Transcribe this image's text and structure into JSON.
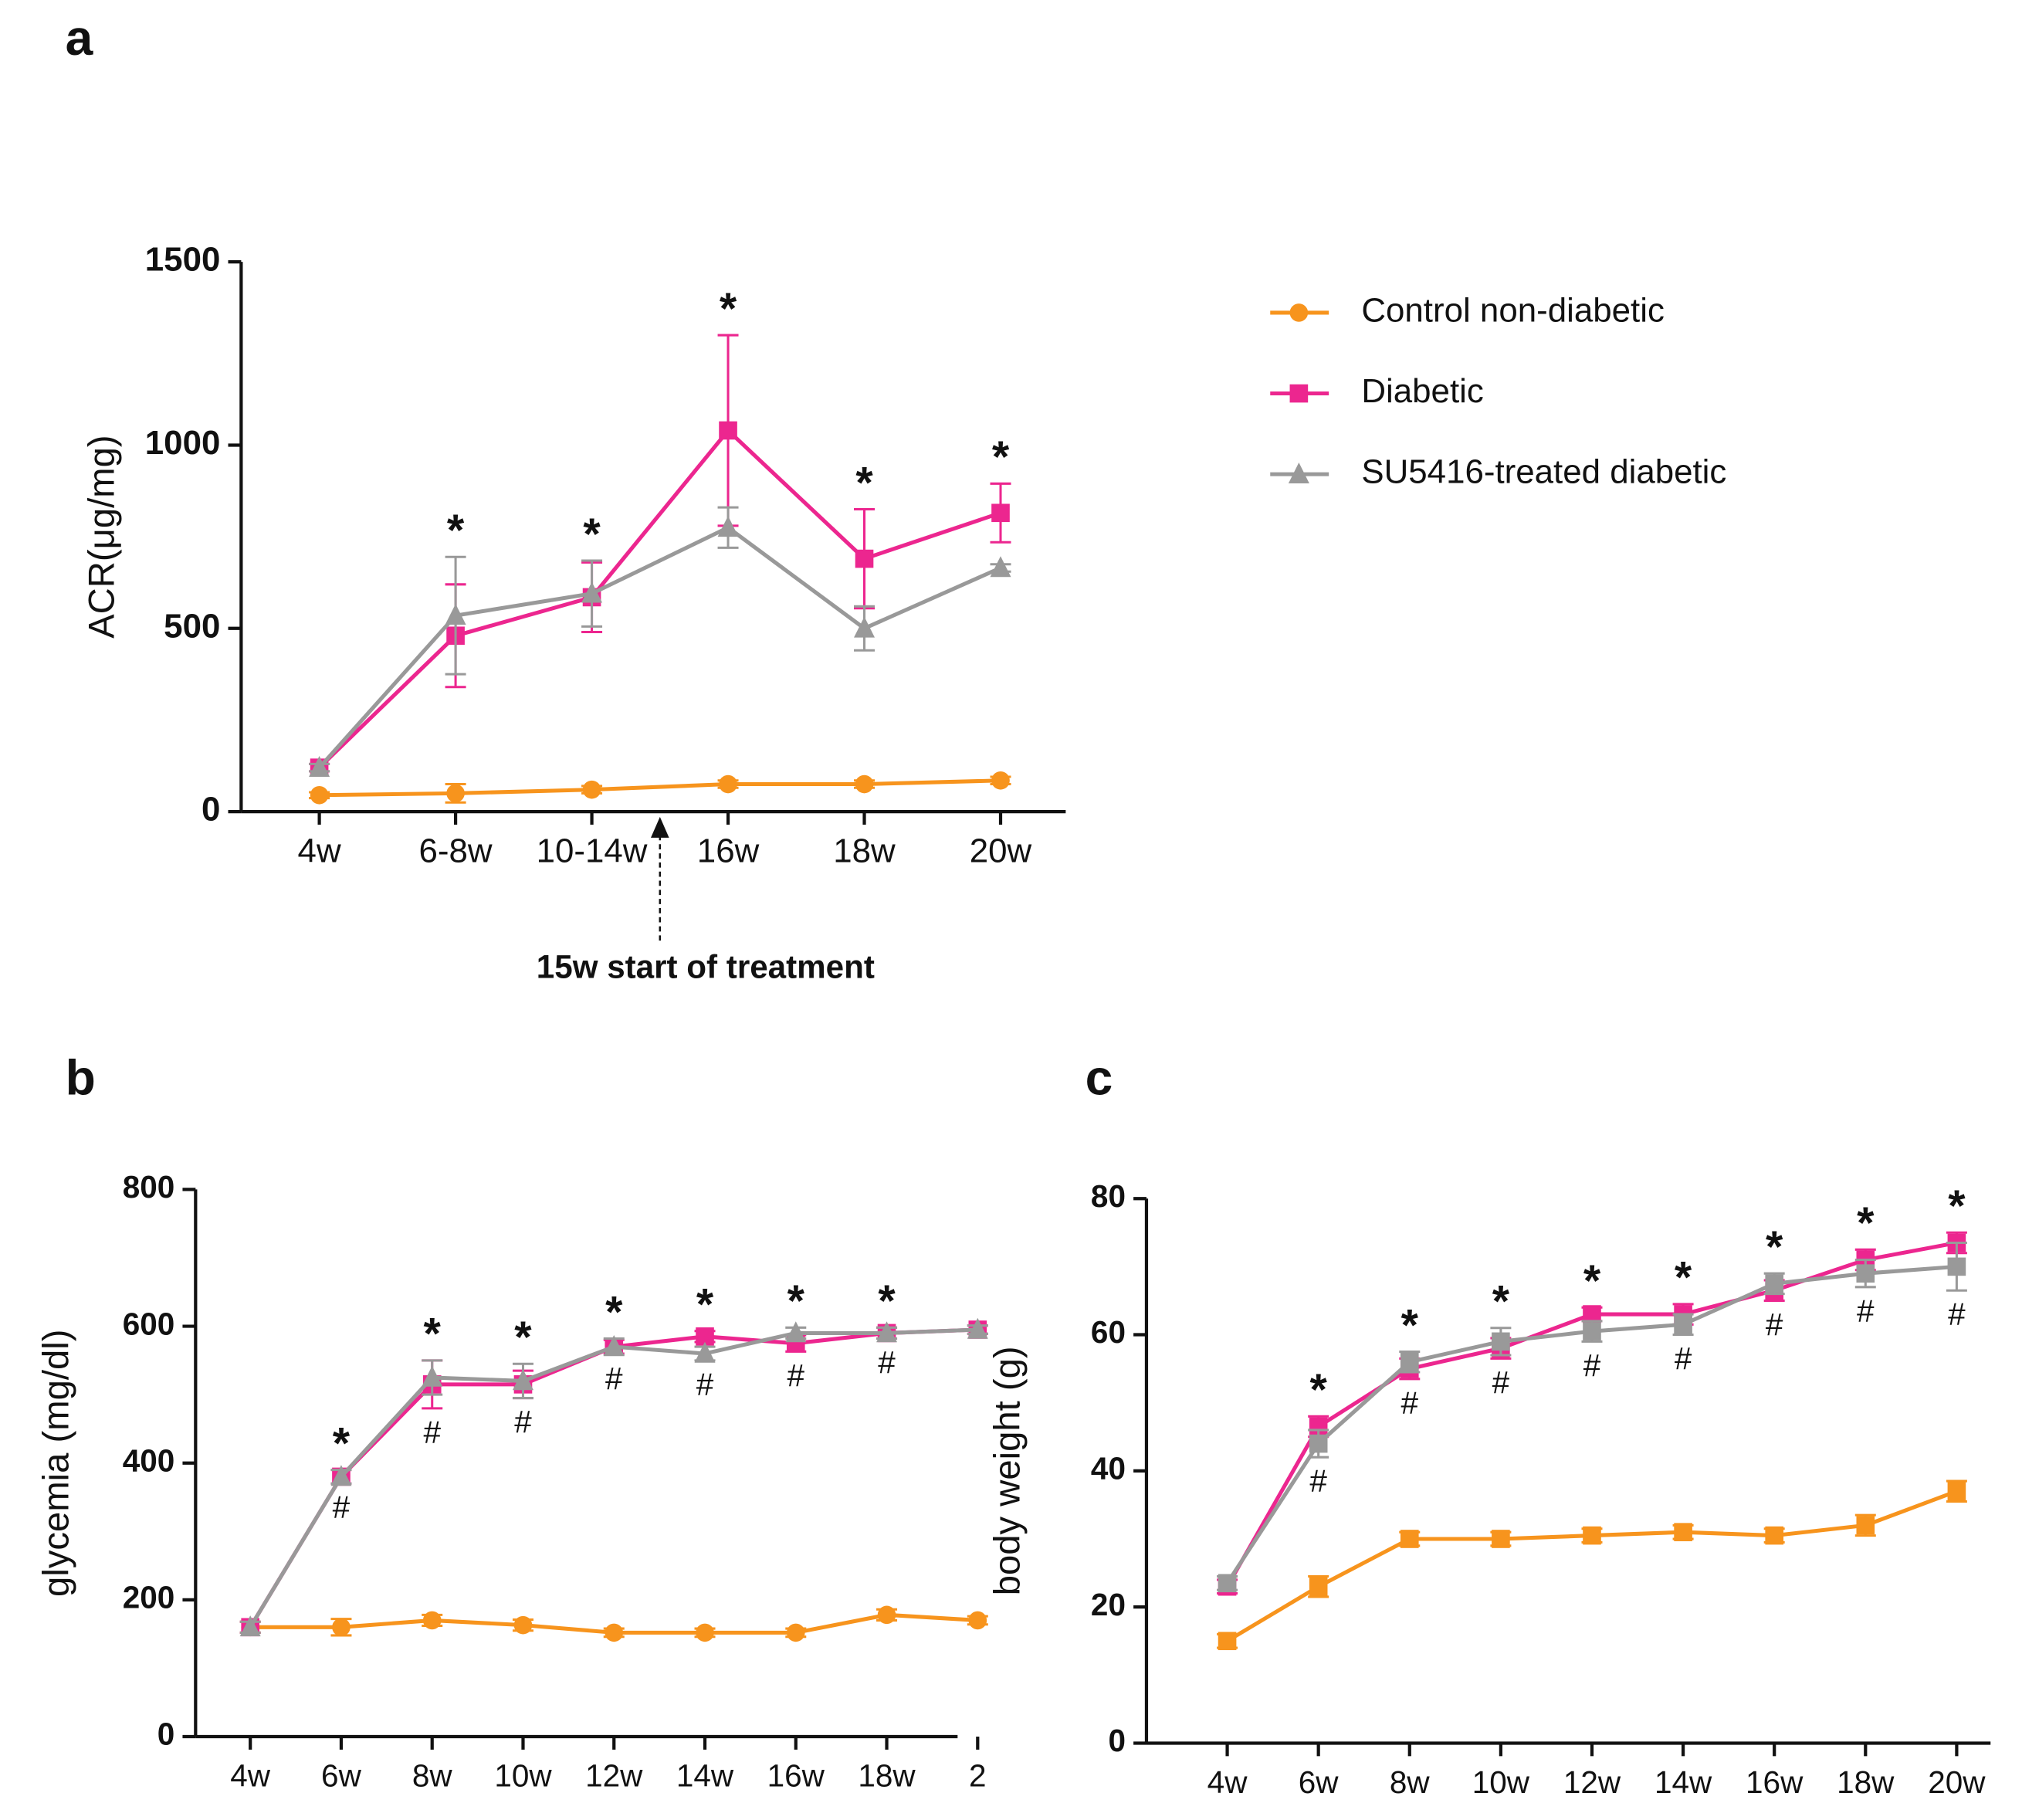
{
  "chart_data": [
    {
      "type": "line",
      "panel": "a",
      "ylabel": "ACR(μg/mg)",
      "ylim": [
        0,
        1500
      ],
      "yticks": [
        0,
        500,
        1000,
        1500
      ],
      "categories": [
        "4w",
        "6-8w",
        "10-14w",
        "16w",
        "18w",
        "20w"
      ],
      "series": [
        {
          "name": "Control non-diabetic",
          "color": "#f7941d",
          "marker": "circle",
          "values": [
            45,
            50,
            60,
            75,
            75,
            85
          ],
          "errors": [
            8,
            25,
            10,
            10,
            10,
            10
          ]
        },
        {
          "name": "Diabetic",
          "color": "#ec268f",
          "marker": "square",
          "values": [
            120,
            480,
            585,
            1040,
            690,
            815
          ],
          "errors": [
            10,
            140,
            95,
            260,
            135,
            80
          ]
        },
        {
          "name": "SU5416-treated diabetic",
          "color": "#999999",
          "marker": "triangle",
          "values": [
            120,
            535,
            595,
            775,
            500,
            665
          ],
          "errors": [
            10,
            160,
            90,
            55,
            60,
            10
          ]
        }
      ],
      "annotations": [
        {
          "text": "*",
          "category": "6-8w"
        },
        {
          "text": "*",
          "category": "10-14w"
        },
        {
          "text": "*",
          "category": "16w"
        },
        {
          "text": "*",
          "category": "18w"
        },
        {
          "text": "*",
          "category": "20w"
        }
      ],
      "note": "15w start of treatment",
      "legend": "right"
    },
    {
      "type": "line",
      "panel": "b",
      "ylabel": "glycemia (mg/dl)",
      "ylim": [
        0,
        800
      ],
      "yticks": [
        0,
        200,
        400,
        600,
        800
      ],
      "categories": [
        "4w",
        "6w",
        "8w",
        "10w",
        "12w",
        "14w",
        "16w",
        "18w",
        "2"
      ],
      "series": [
        {
          "name": "Control non-diabetic",
          "color": "#f7941d",
          "marker": "circle",
          "values": [
            160,
            160,
            170,
            163,
            152,
            152,
            152,
            178,
            170
          ],
          "errors": [
            8,
            12,
            8,
            8,
            6,
            6,
            6,
            8,
            6
          ]
        },
        {
          "name": "Diabetic",
          "color": "#ec268f",
          "marker": "square",
          "values": [
            160,
            380,
            515,
            515,
            570,
            585,
            575,
            590,
            595
          ],
          "errors": [
            8,
            10,
            35,
            20,
            10,
            8,
            12,
            8,
            6
          ]
        },
        {
          "name": "SU5416-treated diabetic",
          "color": "#999999",
          "marker": "triangle",
          "values": [
            160,
            380,
            525,
            520,
            570,
            560,
            590,
            590,
            595
          ],
          "errors": [
            8,
            10,
            25,
            25,
            12,
            10,
            8,
            8,
            6
          ]
        }
      ],
      "annotations": [
        {
          "text": "*",
          "category": "6w"
        },
        {
          "text": "*",
          "category": "8w"
        },
        {
          "text": "*",
          "category": "10w"
        },
        {
          "text": "*",
          "category": "12w"
        },
        {
          "text": "*",
          "category": "14w"
        },
        {
          "text": "*",
          "category": "16w"
        },
        {
          "text": "*",
          "category": "18w"
        },
        {
          "text": "#",
          "category": "6w"
        },
        {
          "text": "#",
          "category": "8w"
        },
        {
          "text": "#",
          "category": "10w"
        },
        {
          "text": "#",
          "category": "12w"
        },
        {
          "text": "#",
          "category": "14w"
        },
        {
          "text": "#",
          "category": "16w"
        },
        {
          "text": "#",
          "category": "18w"
        }
      ]
    },
    {
      "type": "line",
      "panel": "c",
      "ylabel": "body weight (g)",
      "ylim": [
        0,
        80
      ],
      "yticks": [
        0,
        20,
        40,
        60,
        80
      ],
      "categories": [
        "4w",
        "6w",
        "8w",
        "10w",
        "12w",
        "14w",
        "16w",
        "18w",
        "20w"
      ],
      "series": [
        {
          "name": "Control non-diabetic",
          "color": "#f7941d",
          "marker": "square",
          "values": [
            15,
            23,
            30,
            30,
            30.5,
            31,
            30.5,
            32,
            37
          ],
          "errors": [
            1,
            1.5,
            1,
            1,
            1,
            1,
            1,
            1.5,
            1.5
          ]
        },
        {
          "name": "Diabetic",
          "color": "#ec268f",
          "marker": "square",
          "values": [
            23,
            46.5,
            55,
            58,
            63,
            63,
            66.5,
            71,
            73.5
          ],
          "errors": [
            1,
            1.5,
            1.5,
            1.5,
            1,
            1.5,
            1.5,
            1.5,
            1.5
          ]
        },
        {
          "name": "SU5416-treated diabetic",
          "color": "#999999",
          "marker": "square",
          "values": [
            23.5,
            44,
            56,
            59,
            60.5,
            61.5,
            67.5,
            69,
            70
          ],
          "errors": [
            1,
            2,
            1.5,
            2,
            1.5,
            1.5,
            1.5,
            2,
            3.5
          ]
        }
      ],
      "annotations": [
        {
          "text": "*",
          "category": "6w"
        },
        {
          "text": "*",
          "category": "8w"
        },
        {
          "text": "*",
          "category": "10w"
        },
        {
          "text": "*",
          "category": "12w"
        },
        {
          "text": "*",
          "category": "14w"
        },
        {
          "text": "*",
          "category": "16w"
        },
        {
          "text": "*",
          "category": "18w"
        },
        {
          "text": "*",
          "category": "20w"
        },
        {
          "text": "#",
          "category": "6w"
        },
        {
          "text": "#",
          "category": "8w"
        },
        {
          "text": "#",
          "category": "10w"
        },
        {
          "text": "#",
          "category": "12w"
        },
        {
          "text": "#",
          "category": "14w"
        },
        {
          "text": "#",
          "category": "16w"
        },
        {
          "text": "#",
          "category": "18w"
        },
        {
          "text": "#",
          "category": "20w"
        }
      ]
    }
  ]
}
